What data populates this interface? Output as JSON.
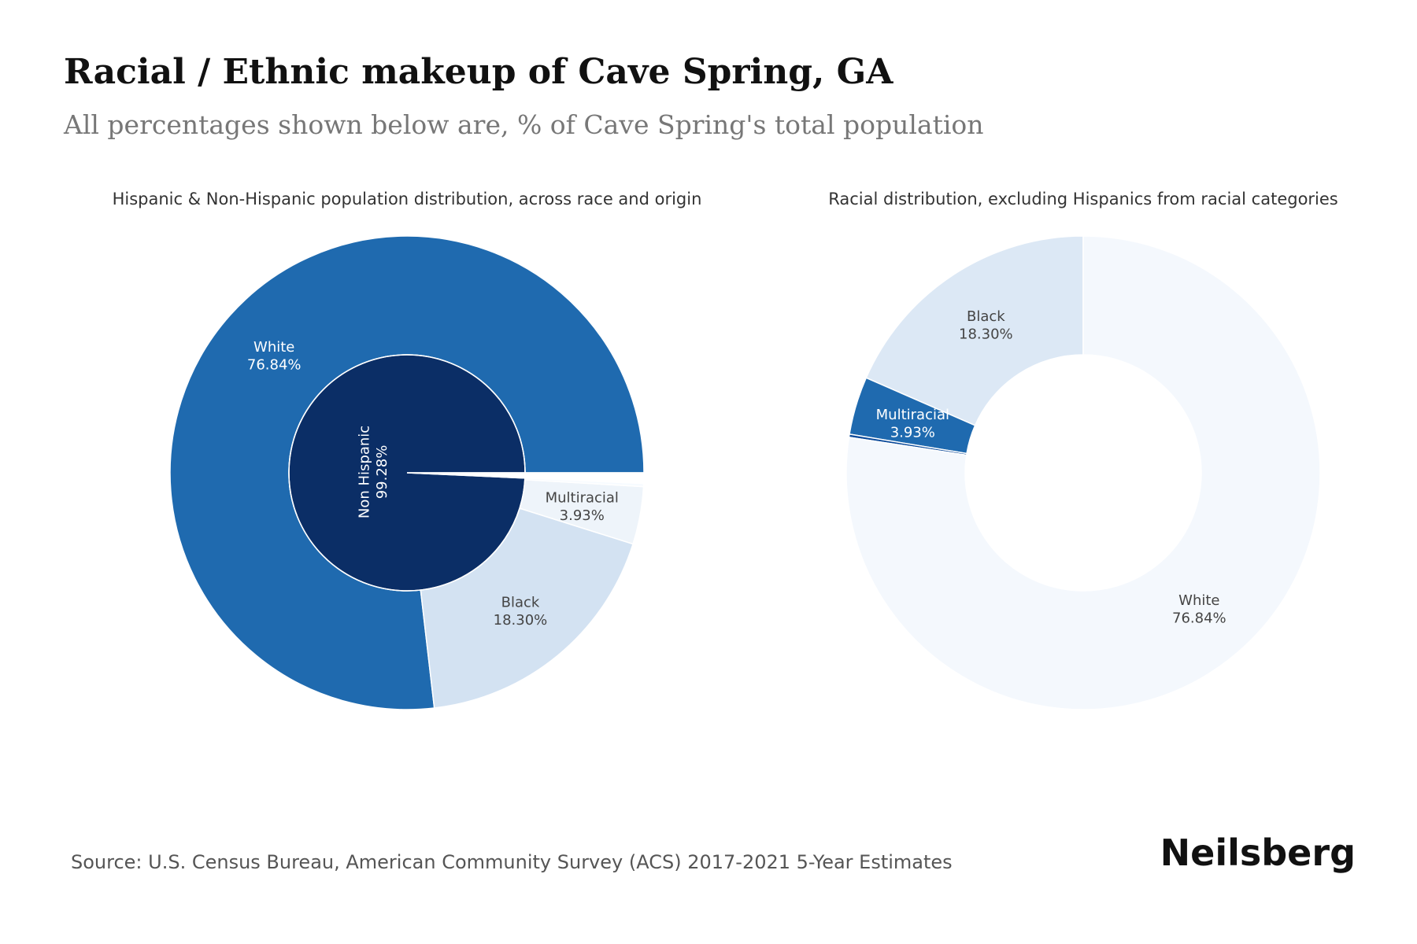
{
  "header": {
    "title": "Racial / Ethnic makeup of Cave Spring, GA",
    "subtitle": "All percentages shown below are, % of Cave Spring's total population"
  },
  "chart_data": [
    {
      "type": "sunburst",
      "title": "Hispanic & Non-Hispanic population distribution, across race and origin",
      "start_angle": 0,
      "inner": {
        "categories": [
          "Non Hispanic",
          null
        ],
        "values": [
          99.28,
          0.72
        ],
        "value_labels": [
          "99.28%",
          null
        ],
        "colors": [
          "#0b2e66",
          "#ffffff"
        ]
      },
      "outer": {
        "categories": [
          "White",
          "Black",
          "Multiracial",
          null,
          null
        ],
        "values": [
          76.84,
          18.3,
          3.93,
          0.21,
          0.72
        ],
        "value_labels": [
          "76.84%",
          "18.30%",
          "3.93%",
          null,
          null
        ],
        "colors": [
          "#1f6aaf",
          "#d3e2f2",
          "#eef4fa",
          "#f7fbff",
          "#ffffff"
        ]
      }
    },
    {
      "type": "donut",
      "title": "Racial distribution, excluding Hispanics from racial categories",
      "start_angle": 90,
      "categories": [
        "Black",
        "Multiracial",
        null,
        "White"
      ],
      "values": [
        18.3,
        3.93,
        0.21,
        76.84
      ],
      "value_labels": [
        "18.30%",
        "3.93%",
        null,
        "76.84%"
      ],
      "colors": [
        "#dce8f5",
        "#1f6aaf",
        "#0b4a9a",
        "#f4f8fd"
      ]
    }
  ],
  "footer": {
    "source": "Source: U.S. Census Bureau, American Community Survey (ACS) 2017-2021 5-Year Estimates",
    "brand": "Neilsberg"
  }
}
